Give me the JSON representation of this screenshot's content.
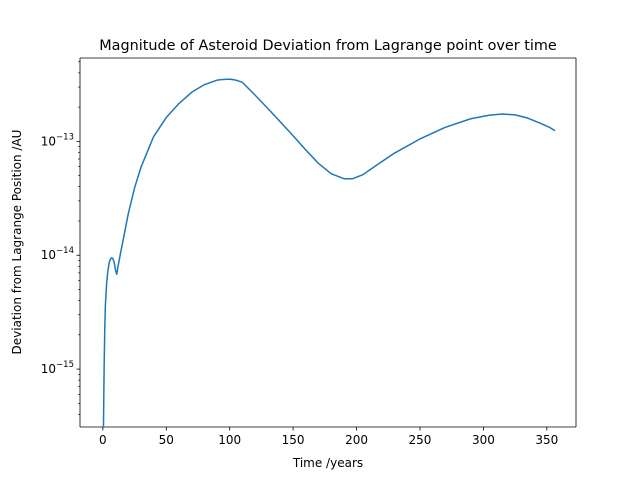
{
  "chart_data": {
    "type": "line",
    "title": "Magnitude of Asteroid Deviation from Lagrange point over time",
    "xlabel": "Time /years",
    "ylabel": "Deviation from Lagrange Position /AU",
    "xlim": [
      -18,
      373
    ],
    "ylim": [
      3.1e-16,
      5.4e-13
    ],
    "yscale": "log",
    "grid": false,
    "xticks": [
      {
        "value": 0,
        "label": "0"
      },
      {
        "value": 50,
        "label": "50"
      },
      {
        "value": 100,
        "label": "100"
      },
      {
        "value": 150,
        "label": "150"
      },
      {
        "value": 200,
        "label": "200"
      },
      {
        "value": 250,
        "label": "250"
      },
      {
        "value": 300,
        "label": "300"
      },
      {
        "value": 350,
        "label": "350"
      }
    ],
    "yticks": [
      {
        "value": 1e-15,
        "base": "10",
        "exp": "−15"
      },
      {
        "value": 1e-14,
        "base": "10",
        "exp": "−14"
      },
      {
        "value": 1e-13,
        "base": "10",
        "exp": "−13"
      }
    ],
    "series": [
      {
        "color": "#1f77b4",
        "x": [
          0.5,
          1,
          1.5,
          2,
          3,
          4,
          5,
          6,
          7,
          8,
          9,
          10,
          11,
          12,
          14,
          17,
          20,
          25,
          30,
          40,
          50,
          60,
          70,
          80,
          90,
          95,
          100,
          105,
          110,
          120,
          130,
          140,
          150,
          160,
          170,
          180,
          190,
          197,
          205,
          215,
          230,
          250,
          270,
          290,
          305,
          315,
          325,
          335,
          345,
          352,
          356
        ],
        "y": [
          3.1e-16,
          1e-15,
          2.2e-15,
          3.6e-15,
          5.7e-15,
          7.3e-15,
          8.6e-15,
          9.3e-15,
          9.5e-15,
          9.3e-15,
          8.6e-15,
          7.4e-15,
          6.8e-15,
          8e-15,
          1.05e-14,
          1.55e-14,
          2.3e-14,
          3.9e-14,
          5.9e-14,
          1.1e-13,
          1.62e-13,
          2.15e-13,
          2.7e-13,
          3.15e-13,
          3.45e-13,
          3.5e-13,
          3.52e-13,
          3.45e-13,
          3.3e-13,
          2.55e-13,
          1.95e-13,
          1.48e-13,
          1.12e-13,
          8.4e-14,
          6.4e-14,
          5.2e-14,
          4.7e-14,
          4.7e-14,
          5.1e-14,
          6.1e-14,
          7.9e-14,
          1.05e-13,
          1.33e-13,
          1.58e-13,
          1.7e-13,
          1.74e-13,
          1.71e-13,
          1.6e-13,
          1.44e-13,
          1.33e-13,
          1.25e-13
        ]
      }
    ]
  }
}
